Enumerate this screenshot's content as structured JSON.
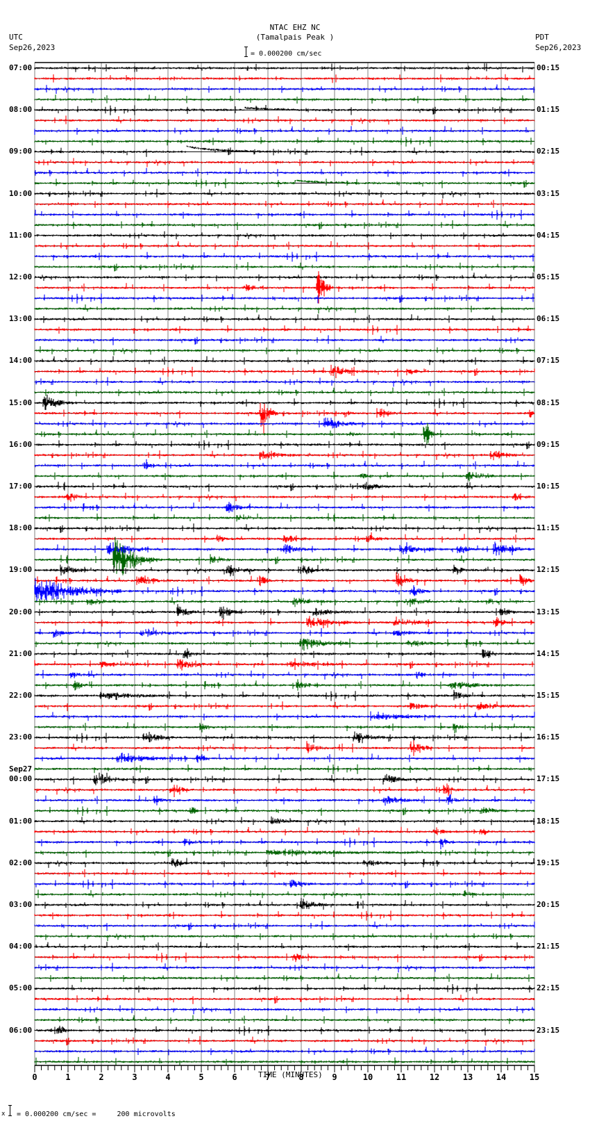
{
  "header": {
    "station": "NTAC EHZ NC",
    "location": "(Tamalpais Peak )",
    "scale_text": "= 0.000200 cm/sec",
    "left_tz": "UTC",
    "left_date": "Sep26,2023",
    "right_tz": "PDT",
    "right_date": "Sep26,2023"
  },
  "footer": {
    "scale_text": "= 0.000200 cm/sec =     200 microvolts",
    "mark": "x"
  },
  "colors": {
    "trace_cycle": [
      "#000000",
      "#ff0000",
      "#0000ff",
      "#006400"
    ],
    "grid": "#808080",
    "axis": "#000000"
  },
  "chart_data": {
    "type": "seismogram",
    "title": "NTAC EHZ NC (Tamalpais Peak )",
    "xlabel": "TIME (MINUTES)",
    "ylabel": "",
    "xlim": [
      0,
      15
    ],
    "x_ticks": [
      "0",
      "1",
      "2",
      "3",
      "4",
      "5",
      "6",
      "7",
      "8",
      "9",
      "10",
      "11",
      "12",
      "13",
      "14",
      "15"
    ],
    "rows_per_hour": 4,
    "row_count": 96,
    "left_labels": [
      {
        "row": 0,
        "text": "07:00"
      },
      {
        "row": 4,
        "text": "08:00"
      },
      {
        "row": 8,
        "text": "09:00"
      },
      {
        "row": 12,
        "text": "10:00"
      },
      {
        "row": 16,
        "text": "11:00"
      },
      {
        "row": 20,
        "text": "12:00"
      },
      {
        "row": 24,
        "text": "13:00"
      },
      {
        "row": 28,
        "text": "14:00"
      },
      {
        "row": 32,
        "text": "15:00"
      },
      {
        "row": 36,
        "text": "16:00"
      },
      {
        "row": 40,
        "text": "17:00"
      },
      {
        "row": 44,
        "text": "18:00"
      },
      {
        "row": 48,
        "text": "19:00"
      },
      {
        "row": 52,
        "text": "20:00"
      },
      {
        "row": 56,
        "text": "21:00"
      },
      {
        "row": 60,
        "text": "22:00"
      },
      {
        "row": 64,
        "text": "23:00"
      },
      {
        "row": 68,
        "text": "00:00",
        "date": "Sep27"
      },
      {
        "row": 72,
        "text": "01:00"
      },
      {
        "row": 76,
        "text": "02:00"
      },
      {
        "row": 80,
        "text": "03:00"
      },
      {
        "row": 84,
        "text": "04:00"
      },
      {
        "row": 88,
        "text": "05:00"
      },
      {
        "row": 92,
        "text": "06:00"
      }
    ],
    "right_labels": [
      {
        "row": 0,
        "text": "00:15"
      },
      {
        "row": 4,
        "text": "01:15"
      },
      {
        "row": 8,
        "text": "02:15"
      },
      {
        "row": 12,
        "text": "03:15"
      },
      {
        "row": 16,
        "text": "04:15"
      },
      {
        "row": 20,
        "text": "05:15"
      },
      {
        "row": 24,
        "text": "06:15"
      },
      {
        "row": 28,
        "text": "07:15"
      },
      {
        "row": 32,
        "text": "08:15"
      },
      {
        "row": 36,
        "text": "09:15"
      },
      {
        "row": 40,
        "text": "10:15"
      },
      {
        "row": 44,
        "text": "11:15"
      },
      {
        "row": 48,
        "text": "12:15"
      },
      {
        "row": 52,
        "text": "13:15"
      },
      {
        "row": 56,
        "text": "14:15"
      },
      {
        "row": 60,
        "text": "15:15"
      },
      {
        "row": 64,
        "text": "16:15"
      },
      {
        "row": 68,
        "text": "17:15"
      },
      {
        "row": 72,
        "text": "18:15"
      },
      {
        "row": 76,
        "text": "19:15"
      },
      {
        "row": 80,
        "text": "20:15"
      },
      {
        "row": 84,
        "text": "21:15"
      },
      {
        "row": 88,
        "text": "22:15"
      },
      {
        "row": 92,
        "text": "23:15"
      }
    ],
    "events": [
      {
        "row": 8,
        "min": 4.55,
        "dur": 7.0,
        "amp": 8,
        "kind": "step"
      },
      {
        "row": 11,
        "min": 7.8,
        "dur": 1.5,
        "amp": 4,
        "kind": "step"
      },
      {
        "row": 4,
        "min": 6.3,
        "dur": 1.6,
        "amp": 3,
        "kind": "step"
      },
      {
        "row": 21,
        "min": 6.3,
        "dur": 0.6,
        "amp": 5
      },
      {
        "row": 21,
        "min": 8.5,
        "dur": 0.5,
        "amp": 22
      },
      {
        "row": 29,
        "min": 8.9,
        "dur": 1.2,
        "amp": 7
      },
      {
        "row": 29,
        "min": 11.2,
        "dur": 0.5,
        "amp": 4
      },
      {
        "row": 32,
        "min": 0.3,
        "dur": 1.0,
        "amp": 10
      },
      {
        "row": 33,
        "min": 6.8,
        "dur": 0.5,
        "amp": 24
      },
      {
        "row": 33,
        "min": 9.3,
        "dur": 0.3,
        "amp": 5
      },
      {
        "row": 33,
        "min": 10.3,
        "dur": 0.6,
        "amp": 6
      },
      {
        "row": 33,
        "min": 14.9,
        "dur": 0.1,
        "amp": 5
      },
      {
        "row": 34,
        "min": 8.7,
        "dur": 1.2,
        "amp": 9
      },
      {
        "row": 35,
        "min": 9.5,
        "dur": 0.3,
        "amp": 4
      },
      {
        "row": 35,
        "min": 11.7,
        "dur": 0.3,
        "amp": 18
      },
      {
        "row": 37,
        "min": 6.8,
        "dur": 1.0,
        "amp": 8
      },
      {
        "row": 37,
        "min": 13.7,
        "dur": 0.8,
        "amp": 8
      },
      {
        "row": 38,
        "min": 3.3,
        "dur": 0.5,
        "amp": 4
      },
      {
        "row": 39,
        "min": 13.0,
        "dur": 0.8,
        "amp": 7
      },
      {
        "row": 39,
        "min": 9.8,
        "dur": 0.4,
        "amp": 4
      },
      {
        "row": 40,
        "min": 9.9,
        "dur": 0.8,
        "amp": 6
      },
      {
        "row": 41,
        "min": 1.0,
        "dur": 0.4,
        "amp": 8
      },
      {
        "row": 41,
        "min": 14.4,
        "dur": 0.5,
        "amp": 4
      },
      {
        "row": 42,
        "min": 5.8,
        "dur": 0.7,
        "amp": 7
      },
      {
        "row": 43,
        "min": 6.1,
        "dur": 0.5,
        "amp": 4
      },
      {
        "row": 45,
        "min": 5.5,
        "dur": 0.3,
        "amp": 5
      },
      {
        "row": 45,
        "min": 7.5,
        "dur": 0.8,
        "amp": 5
      },
      {
        "row": 45,
        "min": 10.0,
        "dur": 0.6,
        "amp": 5
      },
      {
        "row": 46,
        "min": 2.2,
        "dur": 1.6,
        "amp": 10
      },
      {
        "row": 46,
        "min": 7.5,
        "dur": 0.8,
        "amp": 7
      },
      {
        "row": 46,
        "min": 11.0,
        "dur": 1.3,
        "amp": 6
      },
      {
        "row": 46,
        "min": 12.7,
        "dur": 0.6,
        "amp": 6
      },
      {
        "row": 46,
        "min": 13.8,
        "dur": 1.2,
        "amp": 7
      },
      {
        "row": 47,
        "min": 2.4,
        "dur": 1.4,
        "amp": 28
      },
      {
        "row": 47,
        "min": 5.3,
        "dur": 0.6,
        "amp": 6
      },
      {
        "row": 48,
        "min": 0.8,
        "dur": 0.8,
        "amp": 8
      },
      {
        "row": 48,
        "min": 5.8,
        "dur": 0.8,
        "amp": 8
      },
      {
        "row": 48,
        "min": 8.0,
        "dur": 1.0,
        "amp": 6
      },
      {
        "row": 48,
        "min": 12.6,
        "dur": 0.4,
        "amp": 6
      },
      {
        "row": 49,
        "min": 3.1,
        "dur": 1.0,
        "amp": 6
      },
      {
        "row": 49,
        "min": 6.8,
        "dur": 0.3,
        "amp": 7
      },
      {
        "row": 49,
        "min": 10.9,
        "dur": 0.6,
        "amp": 8
      },
      {
        "row": 49,
        "min": 14.6,
        "dur": 0.4,
        "amp": 8
      },
      {
        "row": 50,
        "min": 0.0,
        "dur": 2.6,
        "amp": 22
      },
      {
        "row": 50,
        "min": 11.3,
        "dur": 0.6,
        "amp": 7
      },
      {
        "row": 51,
        "min": 1.6,
        "dur": 1.0,
        "amp": 5
      },
      {
        "row": 51,
        "min": 7.8,
        "dur": 1.0,
        "amp": 6
      },
      {
        "row": 51,
        "min": 11.3,
        "dur": 0.6,
        "amp": 5
      },
      {
        "row": 51,
        "min": 13.6,
        "dur": 0.5,
        "amp": 5
      },
      {
        "row": 52,
        "min": 4.3,
        "dur": 0.7,
        "amp": 6
      },
      {
        "row": 52,
        "min": 5.6,
        "dur": 0.6,
        "amp": 8
      },
      {
        "row": 52,
        "min": 8.4,
        "dur": 1.2,
        "amp": 5
      },
      {
        "row": 52,
        "min": 14.0,
        "dur": 0.5,
        "amp": 6
      },
      {
        "row": 53,
        "min": 8.2,
        "dur": 1.6,
        "amp": 7
      },
      {
        "row": 53,
        "min": 10.8,
        "dur": 1.3,
        "amp": 5
      },
      {
        "row": 53,
        "min": 13.8,
        "dur": 0.6,
        "amp": 6
      },
      {
        "row": 54,
        "min": 0.6,
        "dur": 0.6,
        "amp": 5
      },
      {
        "row": 54,
        "min": 3.2,
        "dur": 1.6,
        "amp": 4
      },
      {
        "row": 54,
        "min": 10.8,
        "dur": 1.0,
        "amp": 4
      },
      {
        "row": 55,
        "min": 8.0,
        "dur": 1.4,
        "amp": 9
      },
      {
        "row": 55,
        "min": 11.2,
        "dur": 1.0,
        "amp": 5
      },
      {
        "row": 56,
        "min": 4.5,
        "dur": 0.5,
        "amp": 6
      },
      {
        "row": 56,
        "min": 13.5,
        "dur": 0.5,
        "amp": 6
      },
      {
        "row": 57,
        "min": 2.0,
        "dur": 1.2,
        "amp": 4
      },
      {
        "row": 57,
        "min": 4.3,
        "dur": 1.0,
        "amp": 7
      },
      {
        "row": 57,
        "min": 7.7,
        "dur": 1.8,
        "amp": 4
      },
      {
        "row": 58,
        "min": 1.1,
        "dur": 0.4,
        "amp": 4
      },
      {
        "row": 58,
        "min": 11.5,
        "dur": 0.4,
        "amp": 4
      },
      {
        "row": 59,
        "min": 1.2,
        "dur": 0.5,
        "amp": 6
      },
      {
        "row": 59,
        "min": 7.9,
        "dur": 0.6,
        "amp": 6
      },
      {
        "row": 59,
        "min": 12.5,
        "dur": 1.8,
        "amp": 5
      },
      {
        "row": 60,
        "min": 2.0,
        "dur": 2.2,
        "amp": 5
      },
      {
        "row": 60,
        "min": 12.6,
        "dur": 0.5,
        "amp": 7
      },
      {
        "row": 61,
        "min": 11.3,
        "dur": 0.5,
        "amp": 6
      },
      {
        "row": 61,
        "min": 13.3,
        "dur": 1.5,
        "amp": 5
      },
      {
        "row": 62,
        "min": 10.1,
        "dur": 2.0,
        "amp": 5
      },
      {
        "row": 63,
        "min": 5.0,
        "dur": 0.4,
        "amp": 6
      },
      {
        "row": 63,
        "min": 12.6,
        "dur": 0.3,
        "amp": 6
      },
      {
        "row": 64,
        "min": 3.3,
        "dur": 1.0,
        "amp": 7
      },
      {
        "row": 64,
        "min": 9.6,
        "dur": 0.9,
        "amp": 8
      },
      {
        "row": 65,
        "min": 8.2,
        "dur": 0.6,
        "amp": 6
      },
      {
        "row": 65,
        "min": 11.3,
        "dur": 0.6,
        "amp": 10
      },
      {
        "row": 66,
        "min": 2.5,
        "dur": 1.6,
        "amp": 8
      },
      {
        "row": 66,
        "min": 4.9,
        "dur": 0.4,
        "amp": 6
      },
      {
        "row": 68,
        "min": 1.8,
        "dur": 1.0,
        "amp": 9
      },
      {
        "row": 68,
        "min": 10.5,
        "dur": 0.8,
        "amp": 7
      },
      {
        "row": 69,
        "min": 4.1,
        "dur": 0.6,
        "amp": 5
      },
      {
        "row": 69,
        "min": 12.3,
        "dur": 0.5,
        "amp": 6
      },
      {
        "row": 70,
        "min": 3.6,
        "dur": 0.4,
        "amp": 5
      },
      {
        "row": 70,
        "min": 10.5,
        "dur": 1.2,
        "amp": 5
      },
      {
        "row": 70,
        "min": 12.4,
        "dur": 0.4,
        "amp": 7
      },
      {
        "row": 71,
        "min": 4.7,
        "dur": 0.2,
        "amp": 5
      },
      {
        "row": 71,
        "min": 13.5,
        "dur": 0.8,
        "amp": 5
      },
      {
        "row": 72,
        "min": 7.1,
        "dur": 0.8,
        "amp": 5
      },
      {
        "row": 73,
        "min": 12.0,
        "dur": 0.5,
        "amp": 5
      },
      {
        "row": 73,
        "min": 13.4,
        "dur": 0.3,
        "amp": 5
      },
      {
        "row": 74,
        "min": 4.5,
        "dur": 0.6,
        "amp": 5
      },
      {
        "row": 74,
        "min": 12.2,
        "dur": 0.4,
        "amp": 5
      },
      {
        "row": 75,
        "min": 7.0,
        "dur": 4.5,
        "amp": 4
      },
      {
        "row": 76,
        "min": 4.1,
        "dur": 0.8,
        "amp": 6
      },
      {
        "row": 76,
        "min": 9.9,
        "dur": 0.8,
        "amp": 5
      },
      {
        "row": 78,
        "min": 7.7,
        "dur": 0.6,
        "amp": 5
      },
      {
        "row": 79,
        "min": 12.9,
        "dur": 0.4,
        "amp": 5
      },
      {
        "row": 80,
        "min": 8.0,
        "dur": 0.8,
        "amp": 8
      },
      {
        "row": 85,
        "min": 7.8,
        "dur": 0.5,
        "amp": 5
      },
      {
        "row": 92,
        "min": 0.7,
        "dur": 0.4,
        "amp": 6
      }
    ]
  },
  "axis": {
    "xlabel": "TIME (MINUTES)"
  }
}
